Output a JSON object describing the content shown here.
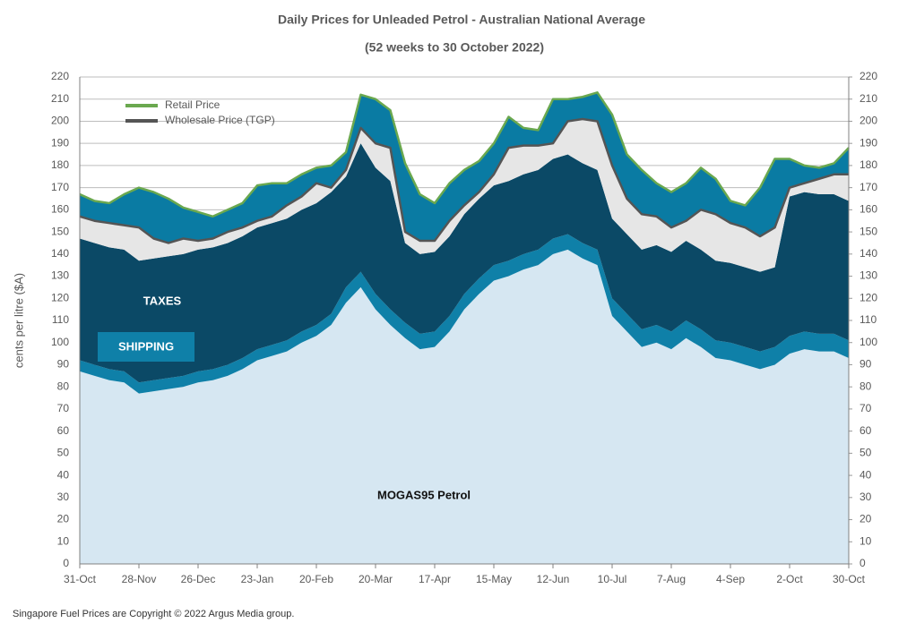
{
  "chart_data": {
    "type": "stacked-area",
    "title": "Daily Prices for Unleaded Petrol - Australian  National Average",
    "subtitle": "(52 weeks to 30 October 2022)",
    "y_label": "cents per litre ($A)",
    "footer": "Singapore Fuel Prices are Copyright © 2022 Argus Media group.",
    "categories": [
      "31-Oct",
      null,
      null,
      null,
      "28-Nov",
      null,
      null,
      null,
      "26-Dec",
      null,
      null,
      null,
      "23-Jan",
      null,
      null,
      null,
      "20-Feb",
      null,
      null,
      null,
      "20-Mar",
      null,
      null,
      null,
      "17-Apr",
      null,
      null,
      null,
      "15-May",
      null,
      null,
      null,
      "12-Jun",
      null,
      null,
      null,
      "10-Jul",
      null,
      null,
      null,
      "7-Aug",
      null,
      null,
      null,
      "4-Sep",
      null,
      null,
      null,
      "2-Oct",
      null,
      null,
      null,
      "30-Oct"
    ],
    "series": [
      {
        "name": "MOGAS95 Petrol",
        "color": "#d6e7f2",
        "values": [
          87,
          85,
          83,
          82,
          77,
          78,
          79,
          80,
          82,
          83,
          85,
          88,
          92,
          94,
          96,
          100,
          103,
          108,
          118,
          125,
          115,
          108,
          102,
          97,
          98,
          105,
          115,
          122,
          128,
          130,
          133,
          135,
          140,
          142,
          138,
          135,
          112,
          105,
          98,
          100,
          97,
          102,
          98,
          93,
          92,
          90,
          88,
          90,
          95,
          97,
          96,
          96,
          93
        ]
      },
      {
        "name": "SHIPPING",
        "color": "#0f80a8",
        "values": [
          5,
          5,
          5,
          5,
          5,
          5,
          5,
          5,
          5,
          5,
          5,
          5,
          5,
          5,
          5,
          5,
          5,
          5,
          7,
          7,
          7,
          7,
          7,
          7,
          7,
          7,
          7,
          7,
          7,
          7,
          7,
          7,
          7,
          7,
          7,
          7,
          8,
          8,
          8,
          8,
          8,
          8,
          8,
          8,
          8,
          8,
          8,
          8,
          8,
          8,
          8,
          8,
          8
        ]
      },
      {
        "name": "TAXES",
        "color": "#0b4966",
        "values": [
          55,
          55,
          55,
          55,
          55,
          55,
          55,
          55,
          55,
          55,
          55,
          55,
          55,
          55,
          55,
          55,
          55,
          55,
          50,
          58,
          57,
          58,
          36,
          36,
          36,
          36,
          36,
          36,
          36,
          36,
          36,
          36,
          36,
          36,
          36,
          36,
          36,
          36,
          36,
          36,
          36,
          36,
          36,
          36,
          36,
          36,
          36,
          36,
          63,
          63,
          63,
          63,
          63
        ]
      }
    ],
    "lines": [
      {
        "name": "Wholesale  Price (TGP)",
        "color": "#555555",
        "fill": "#e6e6e6",
        "values": [
          157,
          155,
          154,
          153,
          152,
          147,
          145,
          147,
          146,
          147,
          150,
          152,
          155,
          157,
          162,
          166,
          172,
          170,
          178,
          197,
          190,
          188,
          150,
          146,
          146,
          155,
          162,
          168,
          176,
          188,
          189,
          189,
          190,
          200,
          201,
          200,
          180,
          165,
          158,
          157,
          152,
          155,
          160,
          158,
          154,
          152,
          148,
          152,
          170,
          172,
          174,
          176,
          176
        ]
      },
      {
        "name": "Retail Price",
        "color": "#6aa84f",
        "fill": "#0a7ba3",
        "values": [
          167,
          164,
          163,
          167,
          170,
          168,
          165,
          161,
          159,
          157,
          160,
          163,
          171,
          172,
          172,
          176,
          179,
          180,
          186,
          212,
          210,
          205,
          181,
          167,
          163,
          172,
          178,
          182,
          190,
          202,
          197,
          196,
          210,
          210,
          211,
          213,
          203,
          185,
          178,
          172,
          168,
          172,
          179,
          174,
          164,
          162,
          170,
          183,
          183,
          180,
          179,
          181,
          188
        ]
      }
    ],
    "ylim": [
      0,
      220
    ],
    "yticks": [
      0,
      10,
      20,
      30,
      40,
      50,
      60,
      70,
      80,
      90,
      100,
      110,
      120,
      130,
      140,
      150,
      160,
      170,
      180,
      190,
      200,
      210,
      220
    ],
    "y2lim": [
      0,
      220
    ],
    "y2ticks": [
      0,
      10,
      20,
      30,
      40,
      50,
      60,
      70,
      80,
      90,
      100,
      110,
      120,
      130,
      140,
      150,
      160,
      170,
      180,
      190,
      200,
      210,
      220
    ],
    "grid": true
  }
}
